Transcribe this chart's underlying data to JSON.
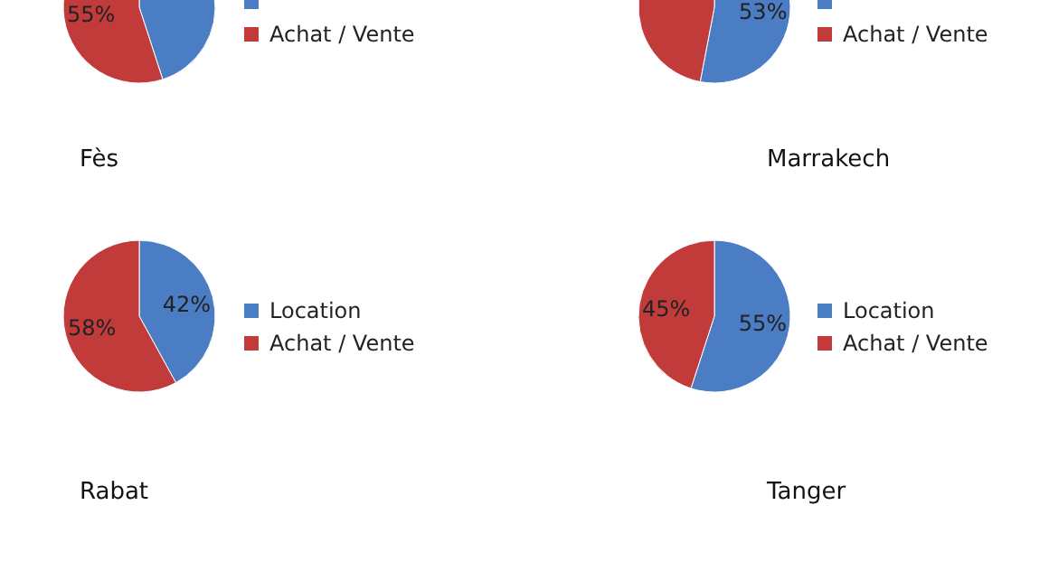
{
  "chart_data": [
    {
      "type": "pie",
      "categories": [
        null,
        "Achat / Vente"
      ],
      "values": [
        45,
        55
      ],
      "value_labels": [
        null,
        "55%"
      ],
      "colors": [
        "#4a7dc4",
        "#c23b3b"
      ],
      "legend": "right"
    },
    {
      "type": "pie",
      "categories": [
        null,
        "Achat / Vente"
      ],
      "values": [
        53,
        47
      ],
      "value_labels": [
        "53%",
        null
      ],
      "colors": [
        "#4a7dc4",
        "#c23b3b"
      ],
      "legend": "right"
    },
    {
      "type": "pie",
      "title": "Fès",
      "categories": [
        "Location",
        "Achat / Vente"
      ],
      "values": [
        42,
        58
      ],
      "value_labels": [
        "42%",
        "58%"
      ],
      "colors": [
        "#4a7dc4",
        "#c23b3b"
      ],
      "legend": "right"
    },
    {
      "type": "pie",
      "title": "Marrakech",
      "categories": [
        "Location",
        "Achat / Vente"
      ],
      "values": [
        55,
        45
      ],
      "value_labels": [
        "55%",
        "45%"
      ],
      "colors": [
        "#4a7dc4",
        "#c23b3b"
      ],
      "legend": "right"
    },
    {
      "type": "pie",
      "title": "Rabat"
    },
    {
      "type": "pie",
      "title": "Tanger"
    }
  ]
}
